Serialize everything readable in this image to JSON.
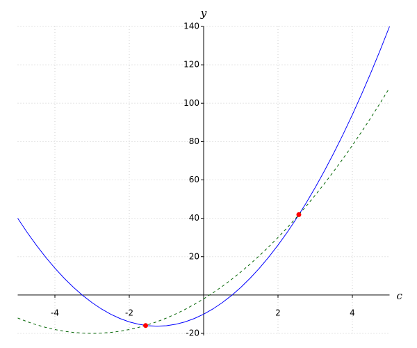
{
  "chart_data": {
    "type": "line",
    "x_label": "c",
    "y_label": "y",
    "xlim": [
      -5,
      5
    ],
    "ylim": [
      -20,
      140
    ],
    "xticks": [
      -4,
      -2,
      2,
      4
    ],
    "yticks": [
      -20,
      20,
      40,
      60,
      80,
      100,
      120,
      140
    ],
    "grid": true,
    "x": [
      -5,
      -4.75,
      -4.5,
      -4.25,
      -4,
      -3.75,
      -3.5,
      -3.25,
      -3,
      -2.75,
      -2.5,
      -2.25,
      -2,
      -1.75,
      -1.5,
      -1.25,
      -1,
      -0.75,
      -0.5,
      -0.25,
      0,
      0.25,
      0.5,
      0.75,
      1,
      1.25,
      1.5,
      1.75,
      2,
      2.25,
      2.5,
      2.75,
      3,
      3.25,
      3.5,
      3.75,
      4,
      4.25,
      4.5,
      4.75,
      5
    ],
    "series": [
      {
        "color": "#0000ff",
        "dashed": false,
        "values": [
          40,
          32.75,
          26,
          19.75,
          14,
          8.75,
          4,
          -0.25,
          -4,
          -7.25,
          -10,
          -12.25,
          -14,
          -15.25,
          -16,
          -16.25,
          -16,
          -15.25,
          -14,
          -12.25,
          -10,
          -7.25,
          -4,
          -0.25,
          4,
          8.75,
          14,
          19.75,
          26,
          32.75,
          40,
          47.75,
          56,
          64.75,
          74,
          83.75,
          94,
          104.75,
          116,
          127.75,
          140
        ]
      },
      {
        "color": "#006400",
        "dashed": true,
        "values": [
          -12,
          -13.875,
          -15.5,
          -16.875,
          -18,
          -18.875,
          -19.5,
          -19.875,
          -20,
          -19.875,
          -19.5,
          -18.875,
          -18,
          -16.875,
          -15.5,
          -13.875,
          -12,
          -9.875,
          -7.5,
          -4.875,
          -2,
          1.125,
          4.5,
          8.125,
          12,
          16.125,
          20.5,
          25.125,
          30,
          35.125,
          40.5,
          46.125,
          52,
          58.125,
          64.5,
          71.125,
          78,
          85.125,
          92.5,
          100.125,
          108
        ]
      }
    ],
    "points": {
      "color": "#ff0000",
      "x": [
        -1.56,
        2.56
      ],
      "y": [
        -15.9,
        41.9
      ]
    }
  }
}
